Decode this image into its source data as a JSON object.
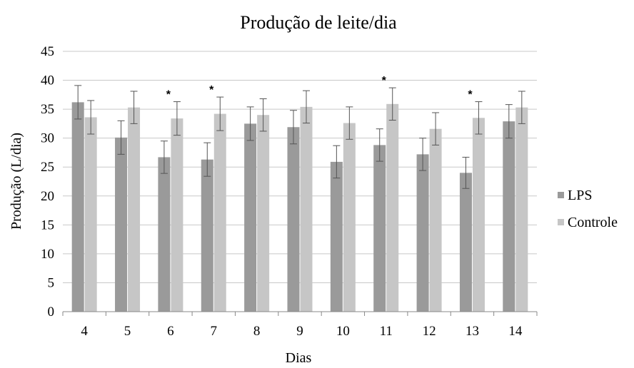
{
  "chart_data": {
    "type": "bar",
    "title": "Produção de leite/dia",
    "xlabel": "Dias",
    "ylabel": "Produção (L/dia)",
    "ylim": [
      0,
      45
    ],
    "yticks": [
      0,
      5,
      10,
      15,
      20,
      25,
      30,
      35,
      40,
      45
    ],
    "grid": true,
    "legend_position": "right",
    "categories": [
      "4",
      "5",
      "6",
      "7",
      "8",
      "9",
      "10",
      "11",
      "12",
      "13",
      "14"
    ],
    "series": [
      {
        "name": "LPS",
        "color": "#9a9a9a",
        "values": [
          36.2,
          30.1,
          26.7,
          26.3,
          32.5,
          31.9,
          25.9,
          28.8,
          27.2,
          24.0,
          32.9
        ],
        "errors": [
          2.9,
          2.9,
          2.8,
          2.9,
          2.9,
          2.9,
          2.8,
          2.8,
          2.8,
          2.7,
          2.9
        ]
      },
      {
        "name": "Controle",
        "color": "#c6c6c6",
        "values": [
          33.6,
          35.3,
          33.4,
          34.2,
          34.0,
          35.4,
          32.6,
          35.9,
          31.6,
          33.5,
          35.3
        ],
        "errors": [
          2.9,
          2.8,
          2.9,
          2.9,
          2.8,
          2.8,
          2.8,
          2.8,
          2.8,
          2.8,
          2.8
        ]
      }
    ],
    "annotations": [
      {
        "category": "6",
        "text": "*"
      },
      {
        "category": "7",
        "text": "*"
      },
      {
        "category": "11",
        "text": "*"
      },
      {
        "category": "13",
        "text": "*"
      }
    ]
  }
}
